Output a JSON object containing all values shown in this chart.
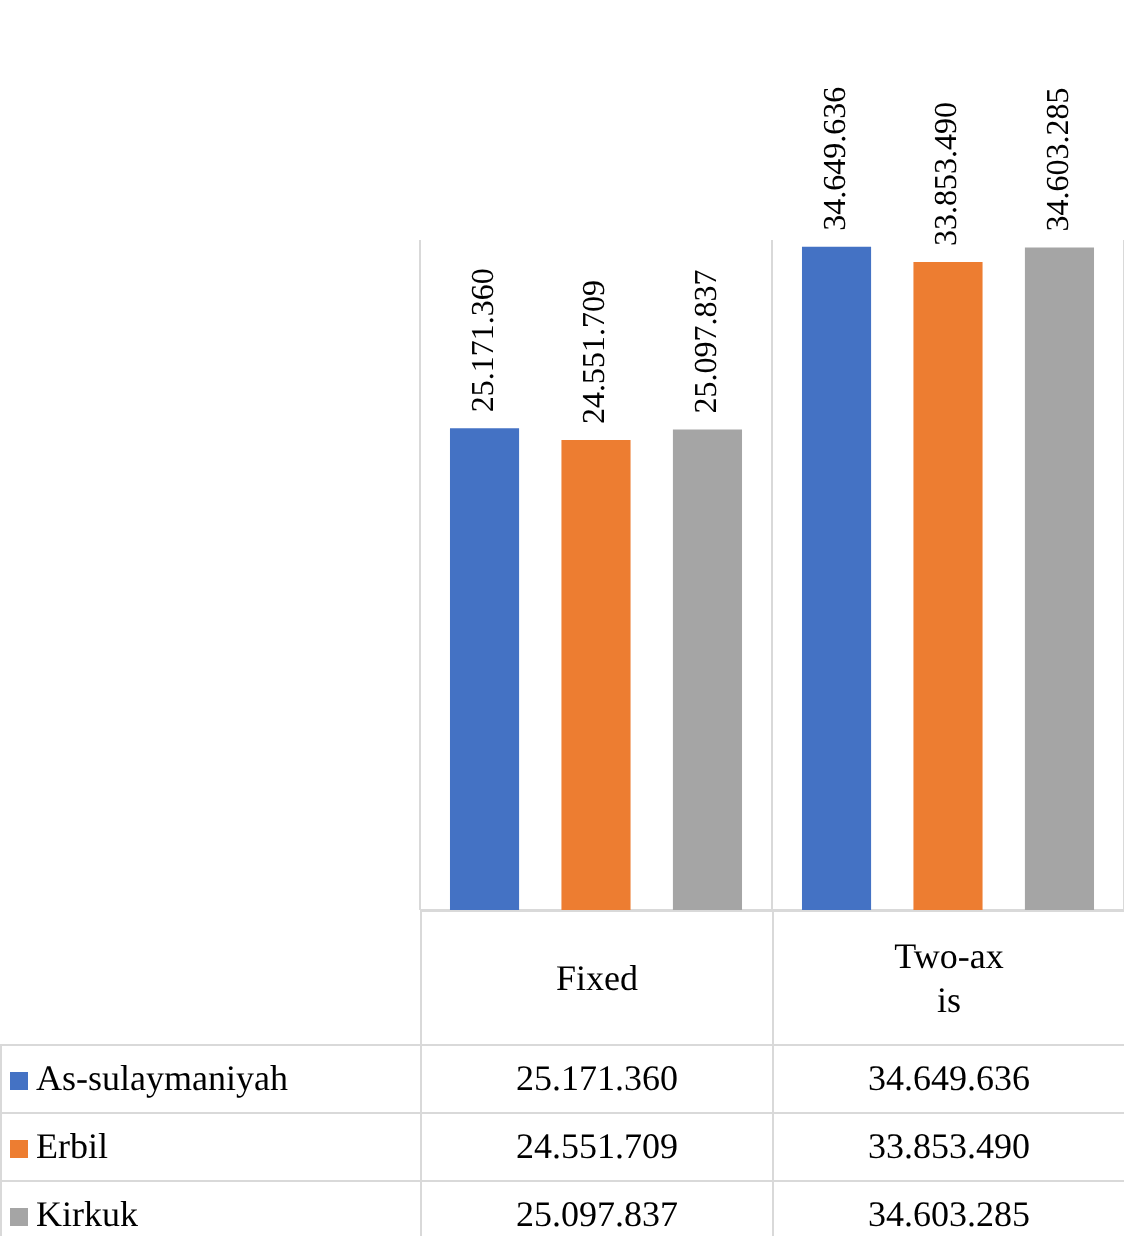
{
  "chart_data": {
    "type": "bar",
    "categories": [
      "Fixed",
      "Two-axis"
    ],
    "series": [
      {
        "name": "As-sulaymaniyah",
        "color": "#4472c4",
        "values": [
          25171360,
          34649636
        ],
        "value_labels": [
          "25.171.360",
          "34.649.636"
        ]
      },
      {
        "name": "Erbil",
        "color": "#ed7d31",
        "values": [
          24551709,
          33853490
        ],
        "value_labels": [
          "24.551.709",
          "33.853.490"
        ]
      },
      {
        "name": "Kirkuk",
        "color": "#a5a5a5",
        "values": [
          25097837,
          34603285
        ],
        "value_labels": [
          "25.097.837",
          "34.603.285"
        ]
      }
    ],
    "legend": "bottom",
    "grid": "x"
  }
}
